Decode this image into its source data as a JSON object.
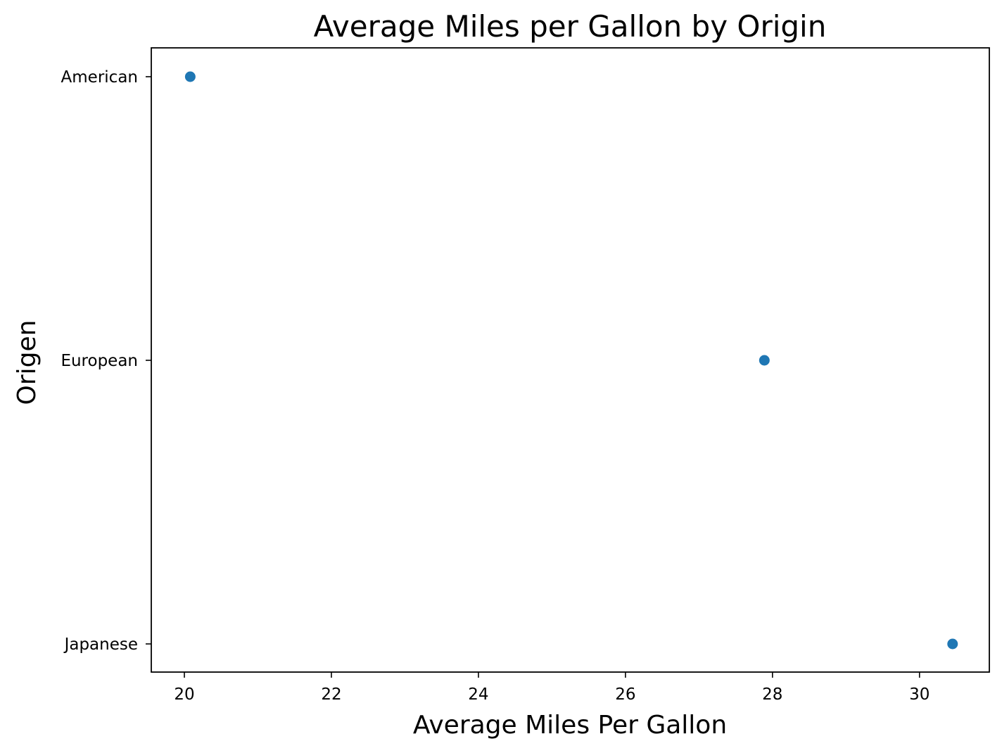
{
  "chart_data": {
    "type": "scatter",
    "title": "Average Miles per Gallon by Origin",
    "xlabel": "Average Miles Per Gallon",
    "ylabel": "Origen",
    "categories": [
      "American",
      "European",
      "Japanese"
    ],
    "x_ticks": [
      "20",
      "22",
      "24",
      "26",
      "28",
      "30"
    ],
    "xlim": [
      19.55,
      30.95
    ],
    "grid": false,
    "legend": "none",
    "marker_color": "#1f77b4",
    "series": [
      {
        "points": [
          {
            "category": "American",
            "value": 20.08
          },
          {
            "category": "European",
            "value": 27.89
          },
          {
            "category": "Japanese",
            "value": 30.45
          }
        ]
      }
    ]
  }
}
